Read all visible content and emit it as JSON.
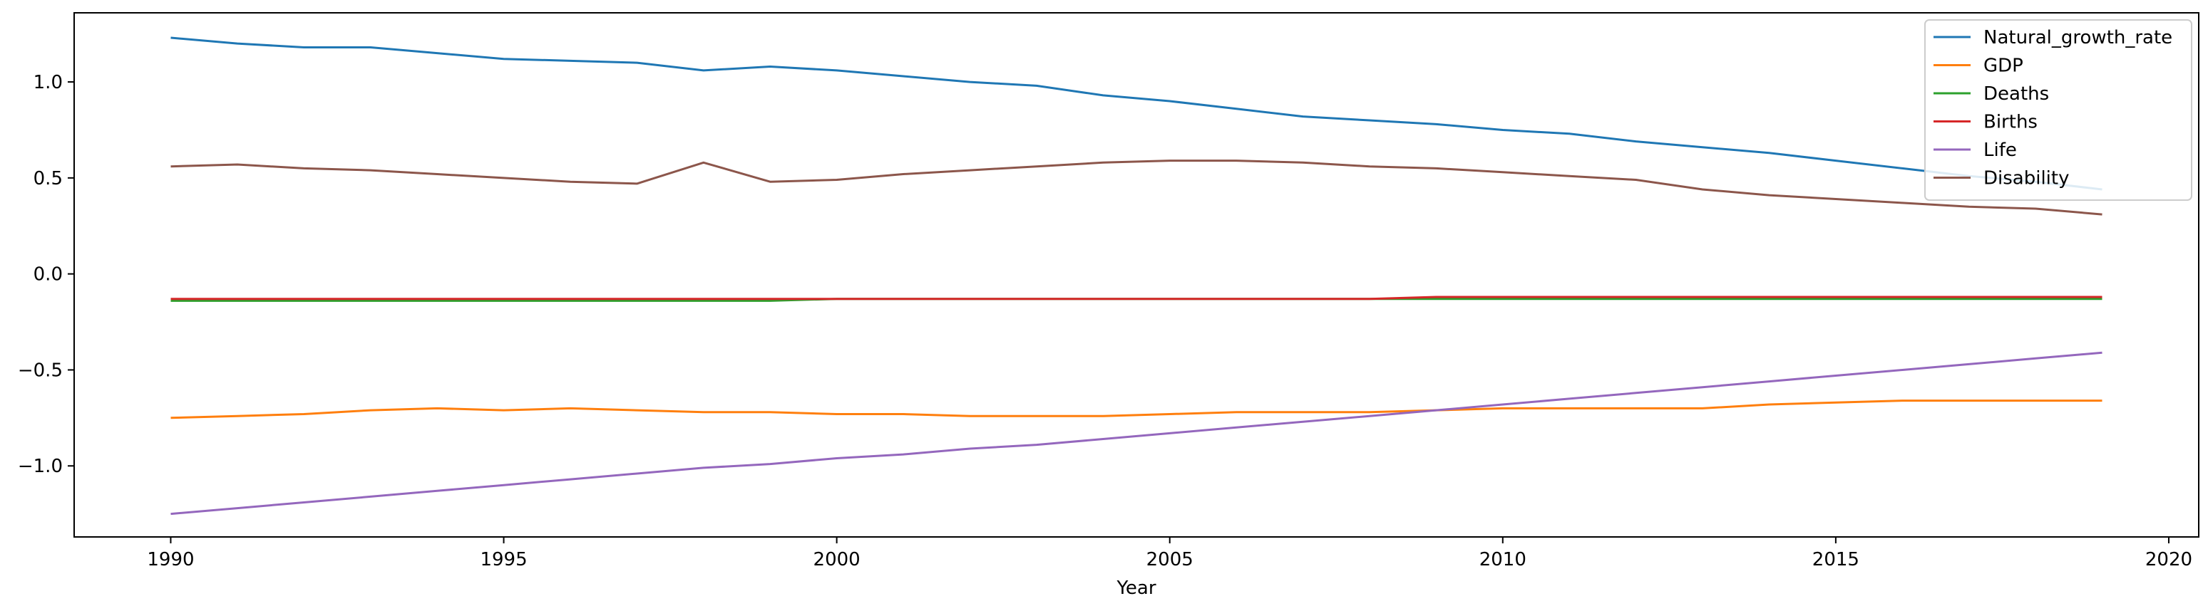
{
  "chart_data": {
    "type": "line",
    "title": "",
    "xlabel": "Year",
    "ylabel": "",
    "x": [
      1990,
      1991,
      1992,
      1993,
      1994,
      1995,
      1996,
      1997,
      1998,
      1999,
      2000,
      2001,
      2002,
      2003,
      2004,
      2005,
      2006,
      2007,
      2008,
      2009,
      2010,
      2011,
      2012,
      2013,
      2014,
      2015,
      2016,
      2017,
      2018,
      2019
    ],
    "xlim": [
      1988.55,
      2020.45
    ],
    "ylim": [
      -1.37,
      1.36
    ],
    "xticks": [
      1990,
      1995,
      2000,
      2005,
      2010,
      2015,
      2020
    ],
    "xtick_labels": [
      "1990",
      "1995",
      "2000",
      "2005",
      "2010",
      "2015",
      "2020"
    ],
    "yticks": [
      -1.0,
      -0.5,
      0.0,
      0.5,
      1.0
    ],
    "ytick_labels": [
      "−1.0",
      "−0.5",
      "0.0",
      "0.5",
      "1.0"
    ],
    "grid": false,
    "legend_position": "top-right",
    "series": [
      {
        "name": "Natural_growth_rate",
        "color": "#1f77b4",
        "values": [
          1.23,
          1.2,
          1.18,
          1.18,
          1.15,
          1.12,
          1.11,
          1.1,
          1.06,
          1.08,
          1.06,
          1.03,
          1.0,
          0.98,
          0.93,
          0.9,
          0.86,
          0.82,
          0.8,
          0.78,
          0.75,
          0.73,
          0.69,
          0.66,
          0.63,
          0.59,
          0.55,
          0.51,
          0.48,
          0.44
        ]
      },
      {
        "name": "GDP",
        "color": "#ff7f0e",
        "values": [
          -0.75,
          -0.74,
          -0.73,
          -0.71,
          -0.7,
          -0.71,
          -0.7,
          -0.71,
          -0.72,
          -0.72,
          -0.73,
          -0.73,
          -0.74,
          -0.74,
          -0.74,
          -0.73,
          -0.72,
          -0.72,
          -0.72,
          -0.71,
          -0.7,
          -0.7,
          -0.7,
          -0.7,
          -0.68,
          -0.67,
          -0.66,
          -0.66,
          -0.66,
          -0.66
        ]
      },
      {
        "name": "Deaths",
        "color": "#2ca02c",
        "values": [
          -0.14,
          -0.14,
          -0.14,
          -0.14,
          -0.14,
          -0.14,
          -0.14,
          -0.14,
          -0.14,
          -0.14,
          -0.13,
          -0.13,
          -0.13,
          -0.13,
          -0.13,
          -0.13,
          -0.13,
          -0.13,
          -0.13,
          -0.13,
          -0.13,
          -0.13,
          -0.13,
          -0.13,
          -0.13,
          -0.13,
          -0.13,
          -0.13,
          -0.13,
          -0.13
        ]
      },
      {
        "name": "Births",
        "color": "#d62728",
        "values": [
          -0.13,
          -0.13,
          -0.13,
          -0.13,
          -0.13,
          -0.13,
          -0.13,
          -0.13,
          -0.13,
          -0.13,
          -0.13,
          -0.13,
          -0.13,
          -0.13,
          -0.13,
          -0.13,
          -0.13,
          -0.13,
          -0.13,
          -0.12,
          -0.12,
          -0.12,
          -0.12,
          -0.12,
          -0.12,
          -0.12,
          -0.12,
          -0.12,
          -0.12,
          -0.12
        ]
      },
      {
        "name": "Life",
        "color": "#9467bd",
        "values": [
          -1.25,
          -1.22,
          -1.19,
          -1.16,
          -1.13,
          -1.1,
          -1.07,
          -1.04,
          -1.01,
          -0.99,
          -0.96,
          -0.94,
          -0.91,
          -0.89,
          -0.86,
          -0.83,
          -0.8,
          -0.77,
          -0.74,
          -0.71,
          -0.68,
          -0.65,
          -0.62,
          -0.59,
          -0.56,
          -0.53,
          -0.5,
          -0.47,
          -0.44,
          -0.41
        ]
      },
      {
        "name": "Disability",
        "color": "#8c564b",
        "values": [
          0.56,
          0.57,
          0.55,
          0.54,
          0.52,
          0.5,
          0.48,
          0.47,
          0.58,
          0.48,
          0.49,
          0.52,
          0.54,
          0.56,
          0.58,
          0.59,
          0.59,
          0.58,
          0.56,
          0.55,
          0.53,
          0.51,
          0.49,
          0.44,
          0.41,
          0.39,
          0.37,
          0.35,
          0.34,
          0.31
        ]
      }
    ]
  }
}
